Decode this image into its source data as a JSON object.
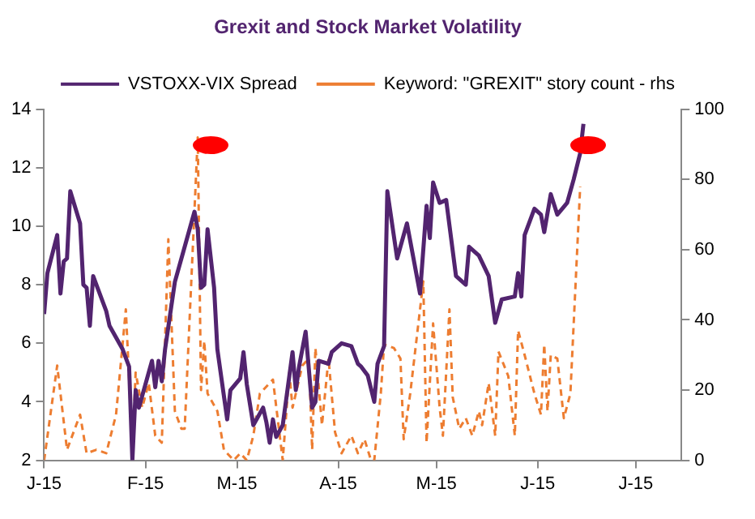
{
  "chart_data": {
    "type": "line",
    "title": "Grexit and Stock Market Volatility",
    "xlim": [
      "2015-01-01",
      "2015-07-15"
    ],
    "xticks": [
      {
        "value": "2015-01-01",
        "label": "J-15"
      },
      {
        "value": "2015-02-01",
        "label": "F-15"
      },
      {
        "value": "2015-03-01",
        "label": "M-15"
      },
      {
        "value": "2015-04-01",
        "label": "A-15"
      },
      {
        "value": "2015-05-01",
        "label": "M-15"
      },
      {
        "value": "2015-06-01",
        "label": "J-15"
      },
      {
        "value": "2015-07-01",
        "label": "J-15"
      }
    ],
    "ylim": [
      2,
      14
    ],
    "yticks": [
      2,
      4,
      6,
      8,
      10,
      12,
      14
    ],
    "y2lim": [
      0,
      100
    ],
    "y2ticks": [
      0,
      20,
      40,
      60,
      80,
      100
    ],
    "grid": false,
    "legend": "top",
    "marker": "none",
    "series": [
      {
        "name": "VSTOXX-VIX Spread",
        "color": "#52246f",
        "line_style": "solid",
        "x": [
          "2015-01-01",
          "2015-01-02",
          "2015-01-05",
          "2015-01-06",
          "2015-01-07",
          "2015-01-08",
          "2015-01-09",
          "2015-01-12",
          "2015-01-13",
          "2015-01-14",
          "2015-01-15",
          "2015-01-16",
          "2015-01-19",
          "2015-01-20",
          "2015-01-21",
          "2015-01-25",
          "2015-01-27",
          "2015-01-28",
          "2015-01-29",
          "2015-01-30",
          "2015-02-03",
          "2015-02-04",
          "2015-02-05",
          "2015-02-06",
          "2015-02-07",
          "2015-02-10",
          "2015-02-12",
          "2015-02-16",
          "2015-02-17",
          "2015-02-18",
          "2015-02-19",
          "2015-02-20",
          "2015-02-22",
          "2015-02-23",
          "2015-02-26",
          "2015-02-27",
          "2015-03-02",
          "2015-03-03",
          "2015-03-04",
          "2015-03-06",
          "2015-03-09",
          "2015-03-10",
          "2015-03-11",
          "2015-03-12",
          "2015-03-13",
          "2015-03-15",
          "2015-03-18",
          "2015-03-19",
          "2015-03-20",
          "2015-03-22",
          "2015-03-24",
          "2015-03-25",
          "2015-03-26",
          "2015-03-29",
          "2015-03-30",
          "2015-04-02",
          "2015-04-05",
          "2015-04-07",
          "2015-04-08",
          "2015-04-10",
          "2015-04-12",
          "2015-04-13",
          "2015-04-15",
          "2015-04-16",
          "2015-04-19",
          "2015-04-22",
          "2015-04-26",
          "2015-04-28",
          "2015-04-29",
          "2015-04-30",
          "2015-05-02",
          "2015-05-04",
          "2015-05-07",
          "2015-05-10",
          "2015-05-11",
          "2015-05-14",
          "2015-05-17",
          "2015-05-19",
          "2015-05-21",
          "2015-05-25",
          "2015-05-26",
          "2015-05-27",
          "2015-05-28",
          "2015-05-31",
          "2015-06-02",
          "2015-06-03",
          "2015-06-05",
          "2015-06-07",
          "2015-06-10",
          "2015-06-12",
          "2015-06-14",
          "2015-06-15"
        ],
        "values": [
          7.0,
          8.4,
          9.7,
          7.7,
          8.8,
          8.9,
          11.2,
          10.1,
          8.0,
          7.9,
          6.6,
          8.3,
          7.4,
          7.1,
          6.6,
          5.8,
          5.2,
          2.0,
          4.4,
          3.8,
          5.4,
          4.5,
          5.4,
          4.7,
          5.8,
          8.1,
          8.9,
          10.5,
          9.9,
          7.9,
          8.0,
          9.9,
          7.9,
          5.8,
          3.4,
          4.4,
          4.8,
          5.7,
          4.6,
          3.2,
          3.8,
          3.3,
          2.6,
          3.4,
          2.8,
          3.2,
          5.7,
          4.4,
          5.2,
          6.4,
          3.8,
          4.0,
          5.4,
          5.3,
          5.7,
          6.0,
          5.9,
          5.3,
          5.2,
          4.9,
          4.0,
          5.3,
          5.9,
          11.2,
          8.9,
          10.1,
          7.7,
          10.7,
          9.6,
          11.5,
          10.8,
          10.9,
          8.3,
          8.0,
          9.3,
          9.0,
          8.3,
          6.7,
          7.5,
          7.6,
          8.4,
          7.6,
          9.7,
          10.6,
          10.4,
          9.8,
          11.1,
          10.4,
          10.8,
          11.6,
          12.5,
          13.5
        ]
      },
      {
        "name": "Keyword: \"GREXIT\" story count - rhs",
        "color": "#ed7d31",
        "line_style": "dashed",
        "axis": "y2",
        "x": [
          "2015-01-01",
          "2015-01-05",
          "2015-01-08",
          "2015-01-12",
          "2015-01-14",
          "2015-01-17",
          "2015-01-20",
          "2015-01-23",
          "2015-01-26",
          "2015-01-28",
          "2015-01-29",
          "2015-01-31",
          "2015-02-02",
          "2015-02-04",
          "2015-02-06",
          "2015-02-08",
          "2015-02-10",
          "2015-02-12",
          "2015-02-13",
          "2015-02-17",
          "2015-02-18",
          "2015-02-19",
          "2015-02-20",
          "2015-02-23",
          "2015-02-25",
          "2015-02-28",
          "2015-03-02",
          "2015-03-04",
          "2015-03-06",
          "2015-03-08",
          "2015-03-10",
          "2015-03-12",
          "2015-03-15",
          "2015-03-17",
          "2015-03-18",
          "2015-03-21",
          "2015-03-23",
          "2015-03-24",
          "2015-03-25",
          "2015-03-27",
          "2015-03-29",
          "2015-03-31",
          "2015-04-02",
          "2015-04-05",
          "2015-04-07",
          "2015-04-09",
          "2015-04-11",
          "2015-04-12",
          "2015-04-14",
          "2015-04-15",
          "2015-04-18",
          "2015-04-20",
          "2015-04-21",
          "2015-04-23",
          "2015-04-27",
          "2015-04-28",
          "2015-04-30",
          "2015-05-02",
          "2015-05-03",
          "2015-05-05",
          "2015-05-06",
          "2015-05-08",
          "2015-05-10",
          "2015-05-12",
          "2015-05-14",
          "2015-05-15",
          "2015-05-17",
          "2015-05-19",
          "2015-05-20",
          "2015-05-23",
          "2015-05-25",
          "2015-05-26",
          "2015-05-28",
          "2015-05-31",
          "2015-06-02",
          "2015-06-03",
          "2015-06-04",
          "2015-06-05",
          "2015-06-07",
          "2015-06-09",
          "2015-06-11",
          "2015-06-14"
        ],
        "values": [
          0,
          27,
          3,
          13,
          2,
          3,
          2,
          13,
          43,
          3,
          25,
          15,
          22,
          7,
          5,
          63,
          14,
          9,
          9,
          92,
          20,
          34,
          19,
          14,
          3,
          0,
          2,
          0,
          7,
          19,
          21,
          23,
          0,
          25,
          15,
          27,
          29,
          3,
          32,
          10,
          29,
          8,
          2,
          7,
          2,
          6,
          0,
          0,
          19,
          33,
          32,
          29,
          6,
          19,
          51,
          5,
          39,
          15,
          7,
          43,
          18,
          9,
          12,
          7,
          14,
          10,
          22,
          7,
          31,
          24,
          7,
          37,
          30,
          19,
          13,
          33,
          14,
          30,
          29,
          12,
          19,
          78
        ]
      }
    ]
  }
}
